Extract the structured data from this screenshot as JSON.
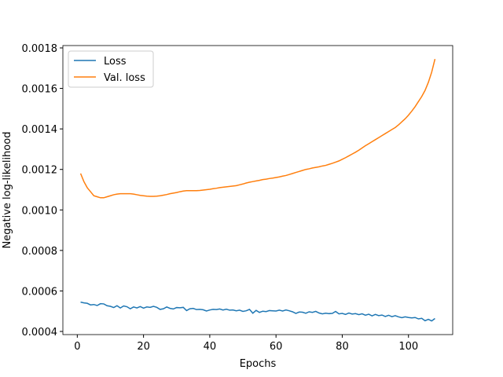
{
  "chart_data": {
    "type": "line",
    "xlabel": "Epochs",
    "ylabel": "Negative log-likelihood",
    "x": [
      1,
      2,
      3,
      4,
      5,
      6,
      7,
      8,
      9,
      10,
      11,
      12,
      13,
      14,
      15,
      16,
      17,
      18,
      19,
      20,
      21,
      22,
      23,
      24,
      25,
      26,
      27,
      28,
      29,
      30,
      31,
      32,
      33,
      34,
      35,
      36,
      37,
      38,
      39,
      40,
      41,
      42,
      43,
      44,
      45,
      46,
      47,
      48,
      49,
      50,
      51,
      52,
      53,
      54,
      55,
      56,
      57,
      58,
      59,
      60,
      61,
      62,
      63,
      64,
      65,
      66,
      67,
      68,
      69,
      70,
      71,
      72,
      73,
      74,
      75,
      76,
      77,
      78,
      79,
      80,
      81,
      82,
      83,
      84,
      85,
      86,
      87,
      88,
      89,
      90,
      91,
      92,
      93,
      94,
      95,
      96,
      97,
      98,
      99,
      100,
      101,
      102,
      103,
      104,
      105,
      106,
      107,
      108
    ],
    "series": [
      {
        "name": "Loss",
        "color": "#1f77b4",
        "values": [
          0.000545,
          0.000541,
          0.000539,
          0.000531,
          0.000533,
          0.000528,
          0.000537,
          0.000536,
          0.000527,
          0.000524,
          0.000518,
          0.000527,
          0.000516,
          0.000526,
          0.000522,
          0.000512,
          0.000521,
          0.000516,
          0.000523,
          0.000515,
          0.000521,
          0.000519,
          0.000524,
          0.000519,
          0.000509,
          0.000512,
          0.000521,
          0.000514,
          0.000511,
          0.000518,
          0.000517,
          0.000519,
          0.000503,
          0.000512,
          0.000514,
          0.000508,
          0.000509,
          0.000507,
          0.000501,
          0.000506,
          0.000509,
          0.000508,
          0.000511,
          0.000506,
          0.00051,
          0.000505,
          0.000506,
          0.000502,
          0.000505,
          0.000499,
          0.000502,
          0.000509,
          0.00049,
          0.000504,
          0.000494,
          0.0005,
          0.000498,
          0.000503,
          0.000502,
          0.000501,
          0.000505,
          0.000501,
          0.000506,
          0.000502,
          0.000497,
          0.000489,
          0.000496,
          0.000495,
          0.00049,
          0.000497,
          0.000494,
          0.000499,
          0.000491,
          0.000487,
          0.00049,
          0.000488,
          0.000489,
          0.000499,
          0.000487,
          0.000489,
          0.000484,
          0.000491,
          0.000486,
          0.000488,
          0.000483,
          0.000487,
          0.00048,
          0.000485,
          0.000477,
          0.000484,
          0.000478,
          0.000481,
          0.000474,
          0.00048,
          0.000473,
          0.000478,
          0.000472,
          0.000468,
          0.000472,
          0.000469,
          0.000467,
          0.000469,
          0.000462,
          0.000465,
          0.000453,
          0.00046,
          0.000452,
          0.000464
        ]
      },
      {
        "name": "Val. loss",
        "color": "#ff7f0e",
        "values": [
          0.00118,
          0.00114,
          0.00111,
          0.00109,
          0.00107,
          0.001065,
          0.00106,
          0.00106,
          0.001065,
          0.00107,
          0.001075,
          0.001078,
          0.00108,
          0.00108,
          0.00108,
          0.00108,
          0.001078,
          0.001075,
          0.001072,
          0.00107,
          0.001068,
          0.001067,
          0.001067,
          0.001068,
          0.00107,
          0.001073,
          0.001076,
          0.00108,
          0.001083,
          0.001086,
          0.00109,
          0.001093,
          0.001095,
          0.001095,
          0.001095,
          0.001095,
          0.001096,
          0.001098,
          0.0011,
          0.001102,
          0.001105,
          0.001107,
          0.00111,
          0.001112,
          0.001114,
          0.001116,
          0.001118,
          0.00112,
          0.001124,
          0.001128,
          0.001133,
          0.001137,
          0.00114,
          0.001143,
          0.001146,
          0.00115,
          0.001152,
          0.001155,
          0.001157,
          0.00116,
          0.001163,
          0.001167,
          0.00117,
          0.001175,
          0.00118,
          0.001185,
          0.00119,
          0.001195,
          0.0012,
          0.001203,
          0.001207,
          0.00121,
          0.001213,
          0.001217,
          0.00122,
          0.001225,
          0.00123,
          0.001236,
          0.001242,
          0.00125,
          0.001258,
          0.001267,
          0.001276,
          0.001285,
          0.001295,
          0.001306,
          0.001317,
          0.001327,
          0.001337,
          0.001347,
          0.001357,
          0.001367,
          0.001377,
          0.001387,
          0.001397,
          0.001407,
          0.00142,
          0.001435,
          0.00145,
          0.001468,
          0.001488,
          0.00151,
          0.001535,
          0.00156,
          0.00159,
          0.00163,
          0.00168,
          0.001745
        ]
      }
    ],
    "xlim": [
      -4.35,
      113.35
    ],
    "xticks": [
      0,
      20,
      40,
      60,
      80,
      100
    ],
    "ylim": [
      0.0003845,
      0.0018116
    ],
    "yticks": [
      0.0004,
      0.0006,
      0.0008,
      {
        "value": 0.001,
        "label": "0.0010"
      },
      0.0012,
      0.0014,
      0.0016,
      0.0018
    ],
    "legend": "upper left",
    "grid": false
  }
}
